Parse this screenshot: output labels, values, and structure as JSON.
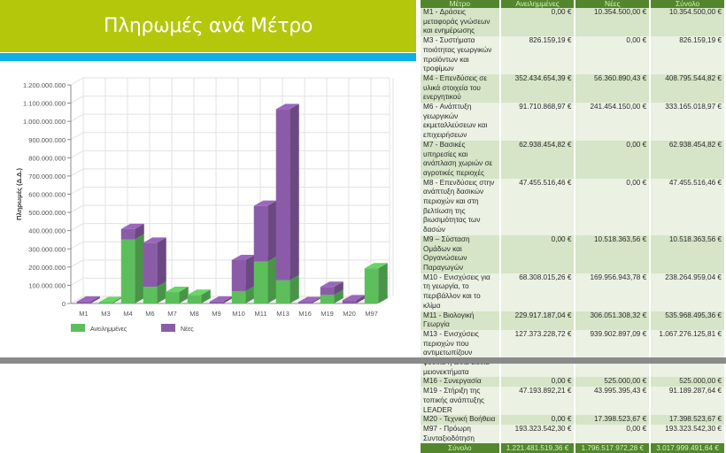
{
  "header": {
    "title": "Πληρωμές ανά Μέτρο"
  },
  "colors": {
    "title_bar": "#b4c70a",
    "accent_blue": "#0cb0e8",
    "table_header": "#53862d",
    "series_committed": "#5cbf5c",
    "series_new": "#8a5ca8"
  },
  "table": {
    "headers": [
      "Μέτρο",
      "Ανειλημμένες",
      "Νέες",
      "Σύνολο"
    ],
    "rows": [
      {
        "measure": "M1 - Δράσεις μεταφοράς γνώσεων και ενημέρωσης",
        "committed": "0,00 €",
        "new": "10.354.500,00 €",
        "total": "10.354.500,00 €"
      },
      {
        "measure": "M3 - Συστήματα ποιότητας γεωργικών προϊόντων και τροφίμων",
        "committed": "826.159,19 €",
        "new": "0,00 €",
        "total": "826.159,19 €"
      },
      {
        "measure": "M4 - Επενδύσεις σε υλικά στοιχεία του ενεργητικού",
        "committed": "352.434.654,39 €",
        "new": "56.360.890,43 €",
        "total": "408.795.544,82 €"
      },
      {
        "measure": "M6 - Ανάπτυξη γεωργικών εκμεταλλεύσεων και επιχειρήσεων",
        "committed": "91.710.868,97 €",
        "new": "241.454.150,00 €",
        "total": "333.165.018,97 €"
      },
      {
        "measure": "M7 - Βασικές υπηρεσίες και ανάπλαση χωριών σε αγροτικές περιοχές",
        "committed": "62.938.454,82 €",
        "new": "0,00 €",
        "total": "62.938.454,82 €"
      },
      {
        "measure": "M8 - Επενδύσεις στην ανάπτυξη δασικών περιοχών και στη βελτίωση της βιωσιμότητας των δασών",
        "committed": "47.455.516,46 €",
        "new": "0,00 €",
        "total": "47.455.516,46 €"
      },
      {
        "measure": "M9 – Σύσταση Ομάδων και Οργανώσεων Παραγωγών",
        "committed": "0,00 €",
        "new": "10.518.363,56 €",
        "total": "10.518.363,56 €"
      },
      {
        "measure": "M10 - Ενισχύσεις για τη γεωργία, το περιβάλλον και το κλίμα",
        "committed": "68.308.015,26 €",
        "new": "169.956.943,78 €",
        "total": "238.264.959,04 €"
      },
      {
        "measure": "M11 - Βιολογική Γεωργία",
        "committed": "229.917.187,04 €",
        "new": "306.051.308,32 €",
        "total": "535.968.495,36 €"
      },
      {
        "measure": "M13 - Ενισχύσεις περιοχών που αντιμετωπίζουν φυσικά ή άλλα ειδικά μειονεκτήματα",
        "committed": "127.373.228,72 €",
        "new": "939.902.897,09 €",
        "total": "1.067.276.125,81 €"
      },
      {
        "measure": "M16 - Συνεργασία",
        "committed": "0,00 €",
        "new": "525.000,00 €",
        "total": "525.000,00 €"
      },
      {
        "measure": "M19 - Στήριξη της τοπικής ανάπτυξης LEADER",
        "committed": "47.193.892,21 €",
        "new": "43.995.395,43 €",
        "total": "91.189.287,64 €"
      },
      {
        "measure": "M20 - Τεχνική Βοήθεια",
        "committed": "0,00 €",
        "new": "17.398.523,67 €",
        "total": "17.398.523,67 €"
      },
      {
        "measure": "M97 - Πρόωρη Συνταξιοδότηση",
        "committed": "193.323.542,30 €",
        "new": "0,00 €",
        "total": "193.323.542,30 €"
      }
    ],
    "total": {
      "label": "Σύνολο",
      "committed": "1.221.481.519,36 €",
      "new": "1.796.517.972,28 €",
      "total": "3.017.999.491,64 €"
    }
  },
  "chart_data": {
    "type": "bar",
    "stacked": true,
    "style": "3d",
    "title": "",
    "xlabel": "",
    "ylabel": "Πληρωμές (Δ.Δ.)",
    "ylim": [
      0,
      1200000000
    ],
    "y_ticks": [
      0,
      100000000,
      200000000,
      300000000,
      400000000,
      500000000,
      600000000,
      700000000,
      800000000,
      900000000,
      1000000000,
      1100000000,
      1200000000
    ],
    "y_tick_labels": [
      "0",
      "100.000.000",
      "200.000.000",
      "300.000.000",
      "400.000.000",
      "500.000.000",
      "600.000.000",
      "700.000.000",
      "800.000.000",
      "900.000.000",
      "1.000.000.000",
      "1.100.000.000",
      "1.200.000.000"
    ],
    "grid": true,
    "legend_position": "bottom",
    "categories": [
      "M1",
      "M3",
      "M4",
      "M6",
      "M7",
      "M8",
      "M9",
      "M10",
      "M11",
      "M13",
      "M16",
      "M19",
      "M20",
      "M97"
    ],
    "series": [
      {
        "name": "Ανειλημμένες",
        "color": "#5cbf5c",
        "values": [
          0,
          826159.19,
          352434654.39,
          91710868.97,
          62938454.82,
          47455516.46,
          0,
          68308015.26,
          229917187.04,
          127373228.72,
          0,
          47193892.21,
          0,
          193323542.3
        ]
      },
      {
        "name": "Νέες",
        "color": "#8a5ca8",
        "values": [
          10354500.0,
          0,
          56360890.43,
          241454150.0,
          0,
          0,
          10518363.56,
          169956943.78,
          306051308.32,
          939902897.09,
          525000.0,
          43995395.43,
          17398523.67,
          0
        ]
      }
    ]
  }
}
